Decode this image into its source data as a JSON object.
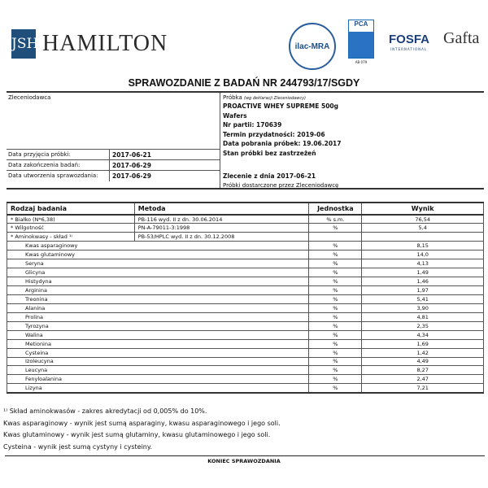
{
  "header": {
    "logo_mark": "JSH",
    "company": "HAMILTON",
    "ilac": "ilac-MRA",
    "pca": "PCA",
    "pca_code": "AB 079",
    "fosfa": "FOSFA",
    "fosfa_sub": "INTERNATIONAL",
    "gafta": "Gafta"
  },
  "title": "SPRAWOZDANIE Z BADAŃ NR 244793/17/SGDY",
  "info": {
    "client_label": "Zleceniodawca",
    "dates": [
      {
        "label": "Data przyjęcia próbki:",
        "value": "2017-06-21"
      },
      {
        "label": "Data zakończenia badań:",
        "value": "2017-06-29"
      },
      {
        "label": "Data utworzenia sprawozdania:",
        "value": "2017-06-29"
      }
    ],
    "sample_label": "Próbka",
    "sample_note": "(wg deklaracji Zleceniodawcy)",
    "sample_lines": [
      "PROACTIVE WHEY SUPREME 500g",
      "Wafers",
      "Nr partii: 170639",
      "Termin przydatności: 2019-06",
      "Data pobrania próbek: 19.06.2017",
      "Stan próbki bez zastrzeżeń"
    ],
    "order": "Zlecenie z dnia 2017-06-21",
    "delivered": "Próbki dostarczone przez Zleceniodawcę"
  },
  "table": {
    "headers": [
      "Rodzaj badania",
      "Metoda",
      "Jednostka",
      "Wynik"
    ],
    "main_rows": [
      {
        "name": "* Białko (N*6,38)",
        "method": "PB-116 wyd. II z dn. 30.06.2014",
        "unit": "% s.m.",
        "result": "76,54"
      },
      {
        "name": "* Wilgotność",
        "method": "PN-A-79011-3:1998",
        "unit": "%",
        "result": "5,4"
      },
      {
        "name": "* Aminokwasy - skład ¹⁾",
        "method": "PB-53/HPLC wyd. II z dn. 30.12.2008",
        "unit": "",
        "result": ""
      }
    ],
    "amino_rows": [
      {
        "name": "Kwas asparaginowy",
        "unit": "%",
        "result": "8,15"
      },
      {
        "name": "Kwas glutaminowy",
        "unit": "%",
        "result": "14,0"
      },
      {
        "name": "Seryna",
        "unit": "%",
        "result": "4,13"
      },
      {
        "name": "Glicyna",
        "unit": "%",
        "result": "1,49"
      },
      {
        "name": "Histydyna",
        "unit": "%",
        "result": "1,46"
      },
      {
        "name": "Arginina",
        "unit": "%",
        "result": "1,97"
      },
      {
        "name": "Treonina",
        "unit": "%",
        "result": "5,41"
      },
      {
        "name": "Alanina",
        "unit": "%",
        "result": "3,90"
      },
      {
        "name": "Prolina",
        "unit": "%",
        "result": "4,81"
      },
      {
        "name": "Tyrozyna",
        "unit": "%",
        "result": "2,35"
      },
      {
        "name": "Walina",
        "unit": "%",
        "result": "4,34"
      },
      {
        "name": "Metionina",
        "unit": "%",
        "result": "1,69"
      },
      {
        "name": "Cysteina",
        "unit": "%",
        "result": "1,42"
      },
      {
        "name": "Izoleucyna",
        "unit": "%",
        "result": "4,49"
      },
      {
        "name": "Leucyna",
        "unit": "%",
        "result": "8,27"
      },
      {
        "name": "Fenyloalanina",
        "unit": "%",
        "result": "2,47"
      },
      {
        "name": "Lizyna",
        "unit": "%",
        "result": "7,21"
      }
    ]
  },
  "footnotes": [
    "¹⁾ Skład aminokwasów - zakres akredytacji od 0,005% do 10%.",
    "Kwas asparaginowy - wynik jest sumą asparaginy, kwasu asparaginowego i jego soli.",
    "Kwas glutaminowy - wynik jest sumą glutaminy, kwasu glutaminowego i jego soli.",
    "Cysteina - wynik jest sumą cystyny i cysteiny."
  ],
  "end": "KONIEC SPRAWOZDANIA"
}
